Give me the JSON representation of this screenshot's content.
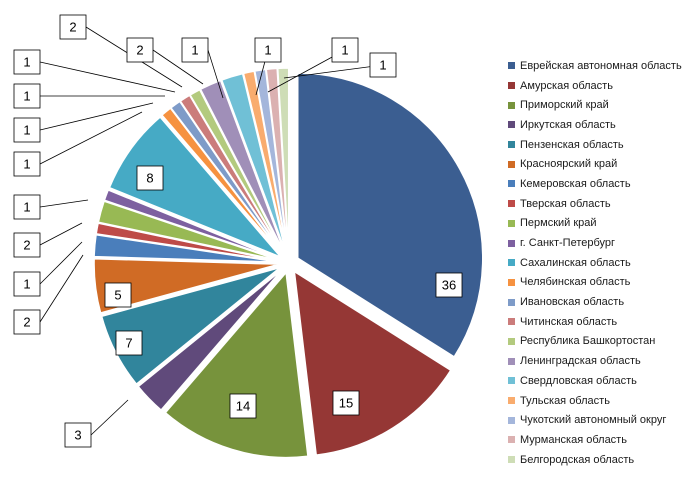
{
  "chart_data": {
    "type": "pie",
    "title": "",
    "legend_position": "right",
    "slices": [
      {
        "label": "Еврейская автономная область",
        "value": 36,
        "color": "#3B5E91"
      },
      {
        "label": "Амурская область",
        "value": 15,
        "color": "#953735"
      },
      {
        "label": "Приморский край",
        "value": 14,
        "color": "#77933C"
      },
      {
        "label": "Иркутская область",
        "value": 3,
        "color": "#604A7B"
      },
      {
        "label": "Пензенская область",
        "value": 7,
        "color": "#31859C"
      },
      {
        "label": "Красноярский край",
        "value": 5,
        "color": "#D06B25"
      },
      {
        "label": "Кемеровская область",
        "value": 2,
        "color": "#4A7EBB"
      },
      {
        "label": "Тверская область",
        "value": 1,
        "color": "#BE4B48"
      },
      {
        "label": "Пермский край",
        "value": 2,
        "color": "#98B954"
      },
      {
        "label": "г. Санкт-Петербург",
        "value": 1,
        "color": "#7D60A0"
      },
      {
        "label": "Сахалинская область",
        "value": 8,
        "color": "#46AAC5"
      },
      {
        "label": "Челябинская область",
        "value": 1,
        "color": "#F69240"
      },
      {
        "label": "Ивановская область",
        "value": 1,
        "color": "#7E9BC8"
      },
      {
        "label": "Читинская область",
        "value": 1,
        "color": "#CB7C7B"
      },
      {
        "label": "Республика Башкортостан",
        "value": 1,
        "color": "#B3CA7E"
      },
      {
        "label": "Ленинградская область",
        "value": 2,
        "color": "#A08FB8"
      },
      {
        "label": "Свердловская область",
        "value": 2,
        "color": "#70C0D6"
      },
      {
        "label": "Тульская область",
        "value": 1,
        "color": "#F9AC6E"
      },
      {
        "label": "Чукотский автономный округ",
        "value": 1,
        "color": "#A4B6DB"
      },
      {
        "label": "Мурманская область",
        "value": 1,
        "color": "#DBB1B1"
      },
      {
        "label": "Белгородская область",
        "value": 1,
        "color": "#CEDDB6"
      }
    ]
  }
}
